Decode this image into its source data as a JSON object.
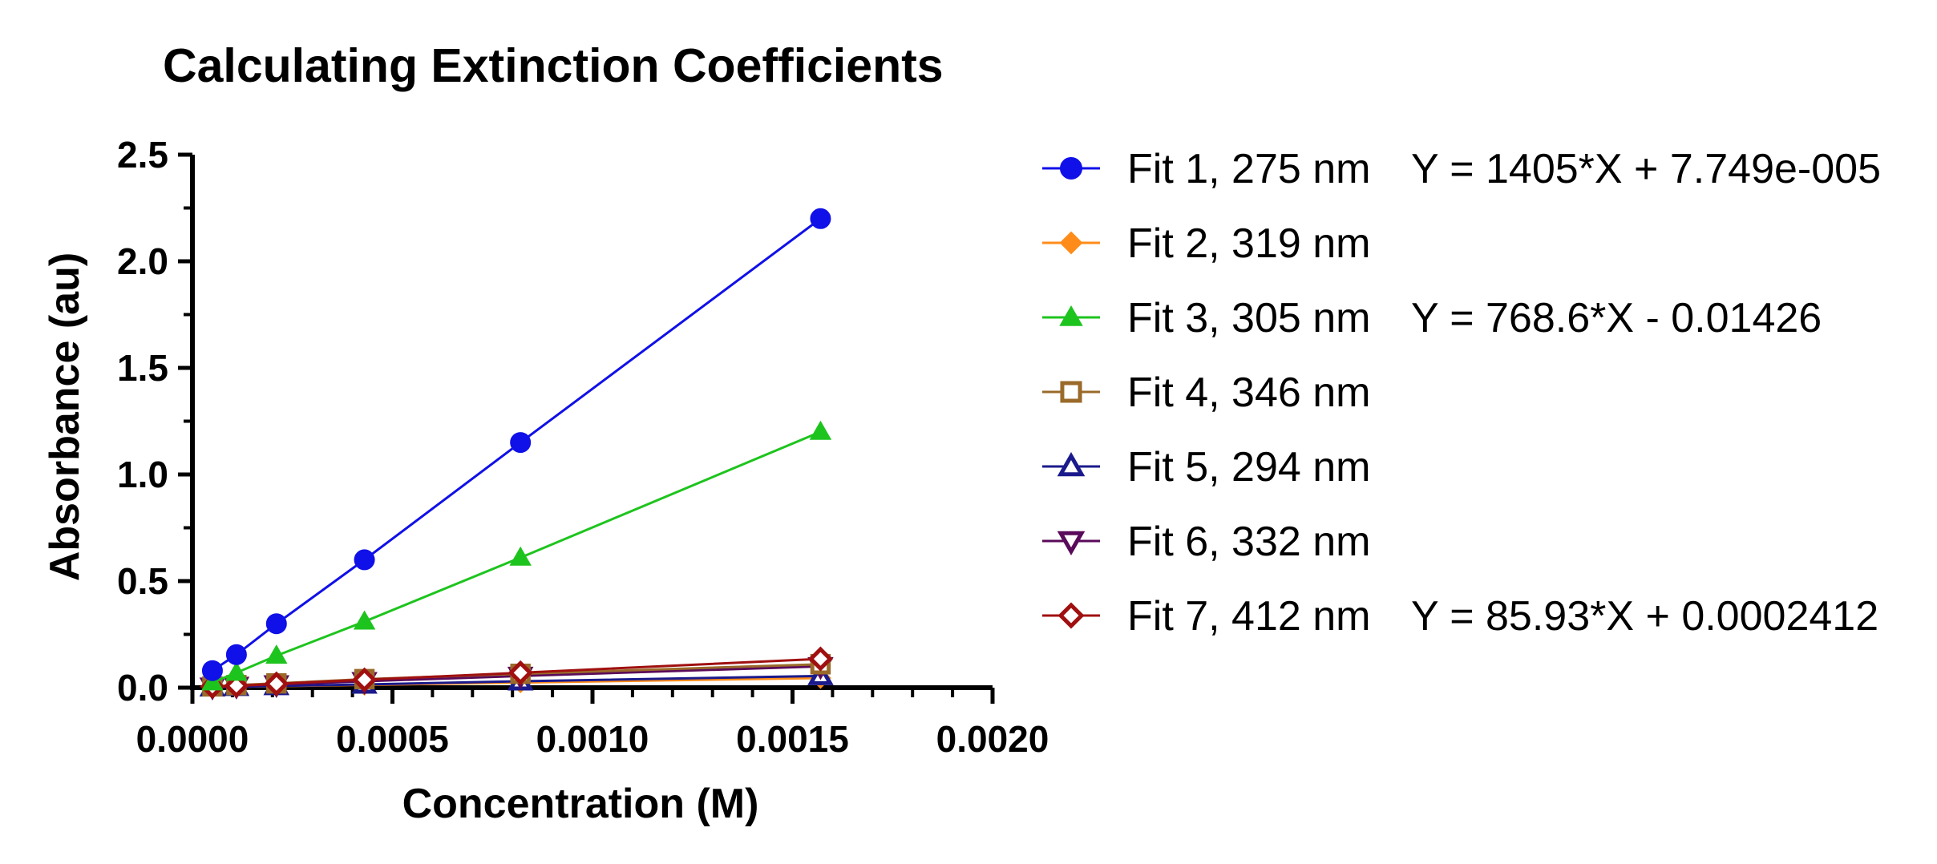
{
  "chart_data": {
    "type": "scatter",
    "title": "Calculating Extinction Coefficients",
    "xlabel": "Concentration (M)",
    "ylabel": "Absorbance (au)",
    "xlim": [
      0,
      0.002
    ],
    "ylim": [
      0,
      2.5
    ],
    "xticks": [
      0,
      0.0005,
      0.001,
      0.0015,
      0.002
    ],
    "xtick_labels": [
      "0.0000",
      "0.0005",
      "0.0010",
      "0.0015",
      "0.0020"
    ],
    "yticks": [
      0,
      0.5,
      1.0,
      1.5,
      2.0,
      2.5
    ],
    "ytick_labels": [
      "0.0",
      "0.5",
      "1.0",
      "1.5",
      "2.0",
      "2.5"
    ],
    "grid": false,
    "legend_position": "right",
    "x": [
      5e-05,
      0.00011,
      0.00021,
      0.00043,
      0.00082,
      0.00157
    ],
    "series": [
      {
        "name": "Fit 1, 275 nm",
        "color": "#1010e8",
        "marker": "circle-filled",
        "fit_equation": "Y = 1405*X + 7.749e-005",
        "values": [
          0.08,
          0.155,
          0.3,
          0.6,
          1.15,
          2.2
        ]
      },
      {
        "name": "Fit 2, 319 nm",
        "color": "#ff8c1a",
        "marker": "diamond-filled",
        "fit_equation": "",
        "values": [
          0.002,
          0.004,
          0.007,
          0.013,
          0.024,
          0.045
        ]
      },
      {
        "name": "Fit 3, 305 nm",
        "color": "#1ec41e",
        "marker": "triangle-up-filled",
        "fit_equation": "Y = 768.6*X - 0.01426",
        "values": [
          0.025,
          0.07,
          0.15,
          0.31,
          0.61,
          1.2
        ]
      },
      {
        "name": "Fit 4, 346 nm",
        "color": "#9a6a2a",
        "marker": "square-open",
        "fit_equation": "",
        "values": [
          0.006,
          0.012,
          0.02,
          0.04,
          0.065,
          0.11
        ]
      },
      {
        "name": "Fit 5, 294 nm",
        "color": "#1a1a8c",
        "marker": "triangle-up-open",
        "fit_equation": "",
        "values": [
          0.002,
          0.004,
          0.008,
          0.015,
          0.03,
          0.055
        ]
      },
      {
        "name": "Fit 6, 332 nm",
        "color": "#5a0a5a",
        "marker": "triangle-down-open",
        "fit_equation": "",
        "values": [
          0.004,
          0.008,
          0.015,
          0.03,
          0.055,
          0.1
        ]
      },
      {
        "name": "Fit 7, 412 nm",
        "color": "#a01010",
        "marker": "diamond-open",
        "fit_equation": "Y = 85.93*X + 0.0002412",
        "values": [
          0.005,
          0.009,
          0.018,
          0.037,
          0.07,
          0.135
        ]
      }
    ]
  }
}
